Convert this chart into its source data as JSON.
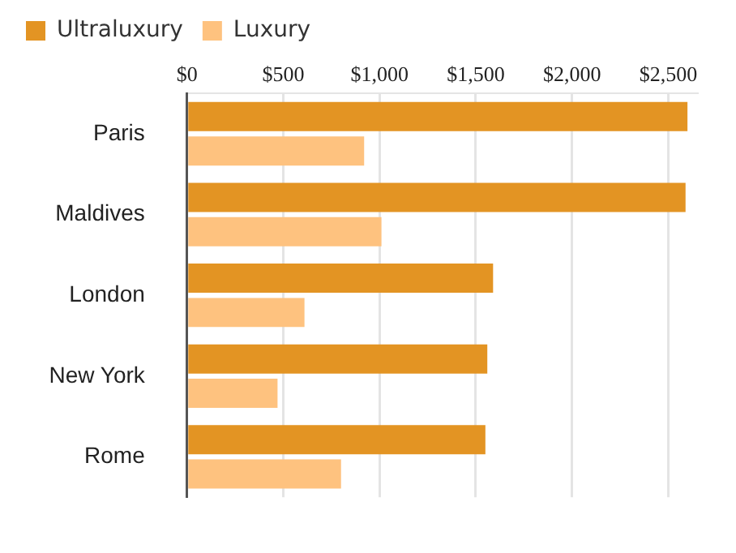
{
  "chart_data": {
    "type": "bar",
    "orientation": "horizontal",
    "categories": [
      "Paris",
      "Maldives",
      "London",
      "New York",
      "Rome"
    ],
    "series": [
      {
        "name": "Ultraluxury",
        "color": "#e39423",
        "values": [
          2600,
          2590,
          1590,
          1560,
          1550
        ]
      },
      {
        "name": "Luxury",
        "color": "#fec27f",
        "values": [
          920,
          1010,
          610,
          470,
          800
        ]
      }
    ],
    "xlim": [
      0,
      2650
    ],
    "xticks": [
      {
        "value": 0,
        "label": "$0"
      },
      {
        "value": 500,
        "label": "$500"
      },
      {
        "value": 1000,
        "label": "$1,000"
      },
      {
        "value": 1500,
        "label": "$1,500"
      },
      {
        "value": 2000,
        "label": "$2,000"
      },
      {
        "value": 2500,
        "label": "$2,500"
      }
    ],
    "grid": "x",
    "legend": "top left"
  }
}
